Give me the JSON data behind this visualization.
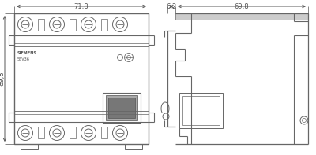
{
  "bg_color": "#ffffff",
  "line_color": "#666666",
  "dim_color": "#555555",
  "dim_71_8": "71,8",
  "dim_6_2": "6,2",
  "dim_69_8": "69,8",
  "dim_89_8": "89,8",
  "label_siemens": "SIEMENS",
  "label_model": "5SV36",
  "fig_width": 4.0,
  "fig_height": 1.97,
  "dpi": 100
}
